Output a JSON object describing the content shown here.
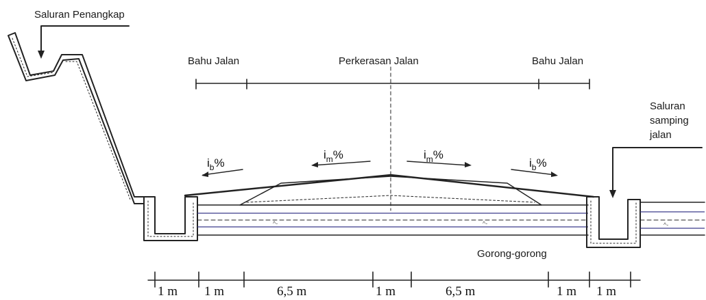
{
  "labels": {
    "catch_channel": "Saluran Penangkap",
    "shoulder_left": "Bahu Jalan",
    "pavement": "Perkerasan Jalan",
    "shoulder_right": "Bahu Jalan",
    "side_channel_line1": "Saluran",
    "side_channel_line2": "samping",
    "side_channel_line3": "jalan",
    "culvert": "Gorong-gorong"
  },
  "slopes": {
    "shoulder_left": {
      "base": "i",
      "sub": "b",
      "suffix": "%"
    },
    "pavement_left": {
      "base": "i",
      "sub": "m",
      "suffix": "%"
    },
    "pavement_right": {
      "base": "i",
      "sub": "m",
      "suffix": "%"
    },
    "shoulder_right": {
      "base": "i",
      "sub": "b",
      "suffix": "%"
    }
  },
  "dimensions": [
    "1 m",
    "1 m",
    "6,5 m",
    "1 m",
    "6,5 m",
    "1 m",
    "1 m"
  ],
  "colors": {
    "ink": "#222222",
    "fill": "#e6e6e6",
    "pipe": "#3a3a8a"
  }
}
